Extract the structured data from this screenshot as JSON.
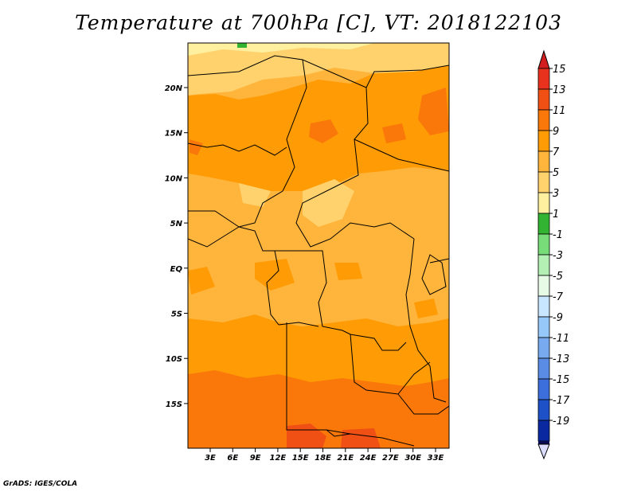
{
  "title": "Temperature at 700hPa [C], VT: 2018122103",
  "credit": "GrADS: IGES/COLA",
  "map": {
    "lat_labels": [
      "20N",
      "15N",
      "10N",
      "5N",
      "EQ",
      "5S",
      "10S",
      "15S"
    ],
    "lon_labels": [
      "3E",
      "6E",
      "9E",
      "12E",
      "15E",
      "18E",
      "21E",
      "24E",
      "27E",
      "30E",
      "33E"
    ]
  },
  "colorbar": {
    "labels": [
      "15",
      "13",
      "11",
      "9",
      "7",
      "5",
      "3",
      "1",
      "-1",
      "-3",
      "-5",
      "-7",
      "-9",
      "-11",
      "-13",
      "-15",
      "-17",
      "-19"
    ],
    "colors": [
      "#e8321e",
      "#f05014",
      "#fa780a",
      "#ff9b05",
      "#ffb43c",
      "#ffd26e",
      "#fff0a0",
      "#32b432",
      "#78dc78",
      "#b4f0b4",
      "#e6fae6",
      "#c8e6ff",
      "#96c8fa",
      "#78aaf0",
      "#5a8ce6",
      "#3c6edc",
      "#1e50c8",
      "#0a28a0"
    ],
    "top_arrow_color": "#d21e1e",
    "bottom_color": "#0a0a50",
    "bottom_arrow_color": "#dcdcff"
  }
}
